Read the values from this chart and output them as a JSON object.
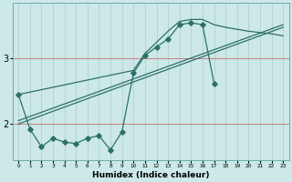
{
  "xlabel": "Humidex (Indice chaleur)",
  "bg_color": "#cce8e8",
  "line_color": "#2d7068",
  "grid_color_h": "#cc5555",
  "grid_color_v": "#aacccc",
  "xlim": [
    -0.5,
    23.5
  ],
  "ylim": [
    1.45,
    3.85
  ],
  "yticks": [
    2,
    3
  ],
  "xticks": [
    0,
    1,
    2,
    3,
    4,
    5,
    6,
    7,
    8,
    9,
    10,
    11,
    12,
    13,
    14,
    15,
    16,
    17,
    18,
    19,
    20,
    21,
    22,
    23
  ],
  "scatter_x": [
    0,
    1,
    2,
    3,
    4,
    5,
    6,
    7,
    8,
    9,
    10,
    11,
    12,
    13,
    14,
    15,
    16,
    17
  ],
  "scatter_y": [
    2.45,
    1.92,
    1.65,
    1.78,
    1.72,
    1.7,
    1.78,
    1.82,
    1.6,
    1.88,
    2.78,
    3.05,
    3.18,
    3.3,
    3.52,
    3.55,
    3.52,
    2.62
  ],
  "line1_x": [
    0,
    23
  ],
  "line1_y": [
    2.05,
    3.52
  ],
  "line2_x": [
    0,
    23
  ],
  "line2_y": [
    2.0,
    3.48
  ],
  "curve_x": [
    0,
    10,
    11,
    12,
    13,
    14,
    15,
    16,
    17,
    18,
    19,
    20,
    21,
    22,
    23
  ],
  "curve_y": [
    2.45,
    2.82,
    3.08,
    3.25,
    3.42,
    3.57,
    3.6,
    3.6,
    3.52,
    3.48,
    3.45,
    3.42,
    3.4,
    3.38,
    3.35
  ]
}
